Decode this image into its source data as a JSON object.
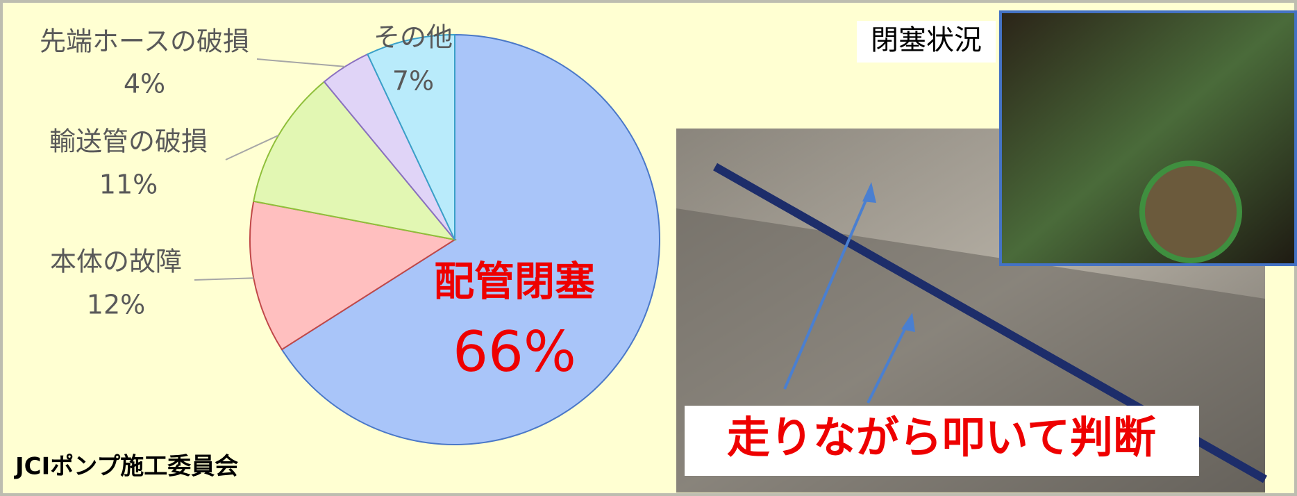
{
  "chart_data": {
    "type": "pie",
    "categories": [
      "配管閉塞",
      "本体の故障",
      "輸送管の破損",
      "先端ホースの破損",
      "その他"
    ],
    "values": [
      66,
      12,
      11,
      4,
      7
    ],
    "value_labels": [
      "66%",
      "12%",
      "11%",
      "4%",
      "7%"
    ],
    "colors": [
      "#a9c5f9",
      "#ffbfbf",
      "#e2f7b3",
      "#e0d4f7",
      "#b9ebfb"
    ],
    "annotations": [
      "JCIポンプ施工委員会",
      "閉塞状況",
      "走りながら叩いて判断"
    ]
  }
}
